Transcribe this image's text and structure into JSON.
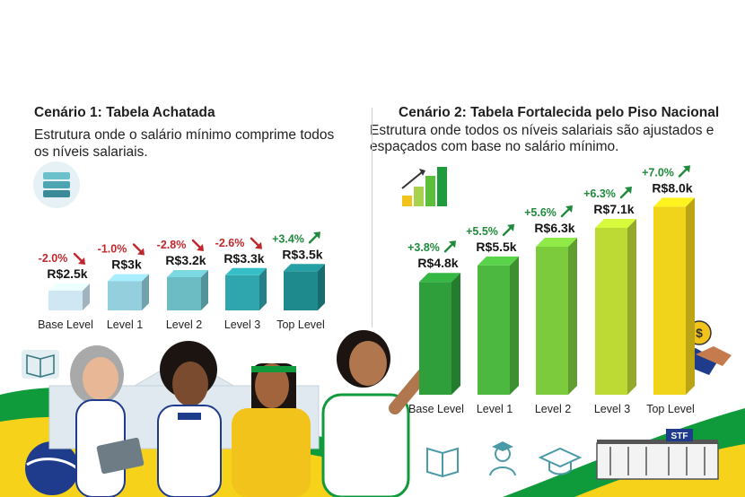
{
  "colors": {
    "negative": "#c0272d",
    "positive": "#1f8a3c",
    "brazil_green": "#0f9a3c",
    "brazil_yellow": "#f7d21b",
    "brazil_blue": "#1f3c8c"
  },
  "icons": [
    "stack-icon",
    "growth-chart-icon",
    "book-icon",
    "graduate-icon",
    "mortarboard-icon",
    "coin-icon",
    "handshake-icon",
    "court-building-icon"
  ],
  "badge": {
    "stf": "STF"
  },
  "chart_data": [
    {
      "type": "bar",
      "title": "Cenário 1: Tabela Achatada",
      "subtitle": "Estrutura onde o salário mínimo comprime todos os níveis salariais.",
      "categories": [
        "Base Level",
        "Level 1",
        "Level 2",
        "Level 3",
        "Top Level"
      ],
      "values": [
        2.5,
        3.0,
        3.2,
        3.3,
        3.5
      ],
      "value_labels": [
        "R$2.5k",
        "R$3k",
        "R$3.2k",
        "R$3.3k",
        "R$3.5k"
      ],
      "change_labels": [
        "-2.0%",
        "-1.0%",
        "-2.8%",
        "-2.6%",
        "+3.4%"
      ],
      "ylabel": "",
      "xlabel": "",
      "ylim": [
        0,
        8.0
      ],
      "grid": false
    },
    {
      "type": "bar",
      "title": "Cenário 2: Tabela Fortalecida pelo Piso Nacional",
      "subtitle": "Estrutura onde todos os níveis salariais são ajustados e espaçados com base no salário mínimo.",
      "categories": [
        "Base Level",
        "Level 1",
        "Level 2",
        "Level 3",
        "Top Level"
      ],
      "values": [
        4.8,
        5.5,
        6.3,
        7.1,
        8.0
      ],
      "value_labels": [
        "R$4.8k",
        "R$5.5k",
        "R$6.3k",
        "R$7.1k",
        "R$8.0k"
      ],
      "change_labels": [
        "+3.8%",
        "+5.5%",
        "+5.6%",
        "+6.3%",
        "+7.0%"
      ],
      "ylabel": "",
      "xlabel": "",
      "ylim": [
        0,
        8.0
      ],
      "grid": false
    }
  ]
}
